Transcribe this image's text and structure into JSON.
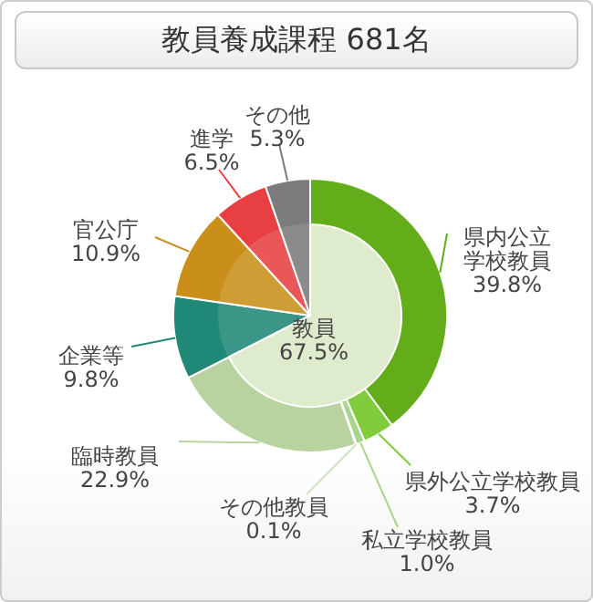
{
  "chart_data": [
    {
      "type": "pie",
      "title": "教員養成課程 681名",
      "categories": [
        "県内公立学校教員",
        "県外公立学校教員",
        "私立学校教員",
        "その他教員",
        "臨時教員",
        "企業等",
        "官公庁",
        "進学",
        "その他"
      ],
      "values": [
        39.8,
        3.7,
        1.0,
        0.1,
        22.9,
        9.8,
        10.9,
        6.5,
        5.3
      ],
      "colors": [
        "#62ad19",
        "#80cc3c",
        "#a9d48c",
        "#cfe3bc",
        "#b9d3a0",
        "#208876",
        "#c98f1a",
        "#e84042",
        "#7b7b7b"
      ],
      "value_labels": [
        "39.8%",
        "3.7%",
        "1.0%",
        "0.1%",
        "22.9%",
        "9.8%",
        "10.9%",
        "6.5%",
        "5.3%"
      ]
    },
    {
      "type": "pie",
      "categories": [
        "教員",
        null
      ],
      "values": [
        67.5,
        32.5
      ],
      "colors": [
        "#deebcd",
        "#ffffff"
      ],
      "value_labels": [
        "67.5%",
        null
      ]
    }
  ]
}
